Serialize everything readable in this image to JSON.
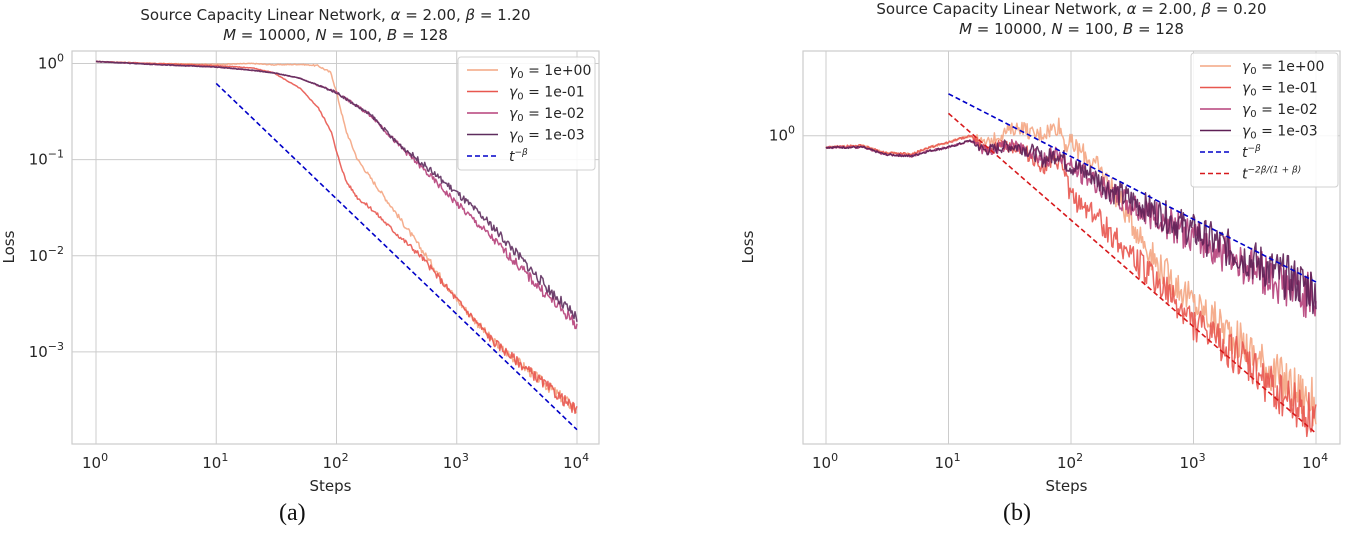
{
  "figure": {
    "panels": [
      {
        "id": "a",
        "caption": "(a)"
      },
      {
        "id": "b",
        "caption": "(b)"
      }
    ]
  },
  "chart_data": [
    {
      "type": "line",
      "title": "Source Capacity Linear Network, α = 2.00, β = 1.20",
      "subtitle": "M = 10000, N = 100, B = 128",
      "title_line1": "Source Capacity Linear Network, ",
      "params": {
        "alpha": "2.00",
        "beta": "1.20",
        "M": "10000",
        "N": "100",
        "B": "128"
      },
      "xlabel": "Steps",
      "ylabel": "Loss",
      "xscale": "log",
      "yscale": "log",
      "xlim": [
        0.6,
        15000
      ],
      "ylim": [
        0.00011,
        1.35
      ],
      "xticks": [
        {
          "v": 1,
          "base": "10",
          "exp": "0"
        },
        {
          "v": 10,
          "base": "10",
          "exp": "1"
        },
        {
          "v": 100,
          "base": "10",
          "exp": "2"
        },
        {
          "v": 1000,
          "base": "10",
          "exp": "3"
        },
        {
          "v": 10000,
          "base": "10",
          "exp": "4"
        }
      ],
      "yticks": [
        {
          "v": 1,
          "base": "10",
          "exp": "0"
        },
        {
          "v": 0.1,
          "base": "10",
          "exp": "−1"
        },
        {
          "v": 0.01,
          "base": "10",
          "exp": "−2"
        },
        {
          "v": 0.001,
          "base": "10",
          "exp": "−3"
        }
      ],
      "grid": true,
      "legend_position": "upper right",
      "series": [
        {
          "name": "γ0 = 1e+00",
          "label_sub": "0",
          "label_val": " = 1e+00",
          "color": "#f4a582",
          "style": "solid",
          "x": [
            1,
            3,
            10,
            20,
            30,
            50,
            70,
            90,
            100,
            120,
            150,
            200,
            300,
            500,
            1000,
            2000,
            5000,
            10000
          ],
          "y": [
            1.05,
            1.0,
            0.98,
            1.0,
            0.97,
            0.98,
            0.95,
            0.8,
            0.5,
            0.2,
            0.1,
            0.06,
            0.03,
            0.012,
            0.0035,
            0.0013,
            0.0005,
            0.00025
          ]
        },
        {
          "name": "γ0 = 1e-01",
          "label_sub": "0",
          "label_val": " = 1e-01",
          "color": "#e8574f",
          "style": "solid",
          "x": [
            1,
            3,
            10,
            20,
            30,
            50,
            70,
            90,
            100,
            120,
            150,
            200,
            300,
            500,
            1000,
            2000,
            5000,
            10000
          ],
          "y": [
            1.05,
            1.0,
            0.95,
            0.9,
            0.8,
            0.55,
            0.35,
            0.2,
            0.12,
            0.06,
            0.04,
            0.03,
            0.018,
            0.01,
            0.0035,
            0.0013,
            0.0005,
            0.00024
          ]
        },
        {
          "name": "γ0 = 1e-02",
          "label_sub": "0",
          "label_val": " = 1e-02",
          "color": "#b5407a",
          "style": "solid",
          "x": [
            1,
            3,
            10,
            20,
            30,
            50,
            100,
            200,
            300,
            500,
            1000,
            2000,
            5000,
            10000
          ],
          "y": [
            1.05,
            0.98,
            0.92,
            0.85,
            0.8,
            0.7,
            0.5,
            0.28,
            0.16,
            0.085,
            0.035,
            0.015,
            0.0045,
            0.0019
          ]
        },
        {
          "name": "γ0 = 1e-03",
          "label_sub": "0",
          "label_val": " = 1e-03",
          "color": "#5e2d5e",
          "style": "solid",
          "x": [
            1,
            3,
            10,
            20,
            30,
            50,
            100,
            200,
            300,
            500,
            1000,
            2000,
            5000,
            10000
          ],
          "y": [
            1.05,
            0.98,
            0.92,
            0.85,
            0.8,
            0.7,
            0.5,
            0.28,
            0.16,
            0.095,
            0.045,
            0.02,
            0.0055,
            0.0022
          ]
        },
        {
          "name": "t^{-β}",
          "label_base": "t",
          "label_sup": "−β",
          "color": "#0000c8",
          "style": "dashed",
          "x": [
            10,
            10000
          ],
          "y": [
            0.62,
            0.000155
          ]
        }
      ]
    },
    {
      "type": "line",
      "title": "Source Capacity Linear Network, α = 2.00, β = 0.20",
      "subtitle": "M = 10000, N = 100, B = 128",
      "title_line1": "Source Capacity Linear Network, ",
      "params": {
        "alpha": "2.00",
        "beta": "0.20",
        "M": "10000",
        "N": "100",
        "B": "128"
      },
      "xlabel": "Steps",
      "ylabel": "Loss",
      "xscale": "log",
      "yscale": "log",
      "xlim": [
        0.6,
        15000
      ],
      "ylim": [
        0.145,
        1.7
      ],
      "xticks": [
        {
          "v": 1,
          "base": "10",
          "exp": "0"
        },
        {
          "v": 10,
          "base": "10",
          "exp": "1"
        },
        {
          "v": 100,
          "base": "10",
          "exp": "2"
        },
        {
          "v": 1000,
          "base": "10",
          "exp": "3"
        },
        {
          "v": 10000,
          "base": "10",
          "exp": "4"
        }
      ],
      "yticks": [
        {
          "v": 1,
          "base": "10",
          "exp": "0"
        }
      ],
      "grid": true,
      "legend_position": "upper right",
      "series": [
        {
          "name": "γ0 = 1e+00",
          "label_sub": "0",
          "label_val": " = 1e+00",
          "color": "#f4a582",
          "style": "solid",
          "x": [
            1,
            2,
            3,
            5,
            7,
            10,
            15,
            20,
            30,
            40,
            50,
            60,
            80,
            90,
            100,
            150,
            200,
            300,
            500,
            1000,
            2000,
            5000,
            10000
          ],
          "y": [
            0.93,
            0.94,
            0.9,
            0.89,
            0.93,
            0.96,
            1.0,
            0.95,
            1.03,
            1.06,
            1.0,
            1.02,
            1.07,
            0.95,
            0.95,
            0.85,
            0.75,
            0.6,
            0.45,
            0.35,
            0.29,
            0.22,
            0.185
          ]
        },
        {
          "name": "γ0 = 1e-01",
          "label_sub": "0",
          "label_val": " = 1e-01",
          "color": "#e8574f",
          "style": "solid",
          "x": [
            1,
            2,
            3,
            5,
            7,
            10,
            15,
            20,
            30,
            40,
            50,
            60,
            80,
            90,
            100,
            150,
            200,
            300,
            500,
            1000,
            2000,
            5000,
            10000
          ],
          "y": [
            0.93,
            0.94,
            0.9,
            0.89,
            0.93,
            0.96,
            1.0,
            0.93,
            0.94,
            0.92,
            0.86,
            0.82,
            0.85,
            0.78,
            0.68,
            0.62,
            0.55,
            0.48,
            0.4,
            0.31,
            0.26,
            0.2,
            0.17
          ]
        },
        {
          "name": "γ0 = 1e-02",
          "label_sub": "0",
          "label_val": " = 1e-02",
          "color": "#b5407a",
          "style": "solid",
          "x": [
            1,
            2,
            3,
            5,
            7,
            10,
            15,
            20,
            30,
            40,
            50,
            60,
            80,
            90,
            100,
            150,
            200,
            300,
            500,
            1000,
            2000,
            5000,
            10000
          ],
          "y": [
            0.93,
            0.93,
            0.89,
            0.88,
            0.91,
            0.93,
            0.97,
            0.91,
            0.94,
            0.93,
            0.9,
            0.86,
            0.9,
            0.85,
            0.82,
            0.76,
            0.7,
            0.65,
            0.6,
            0.53,
            0.47,
            0.4,
            0.36
          ]
        },
        {
          "name": "γ0 = 1e-03",
          "label_sub": "0",
          "label_val": " = 1e-03",
          "color": "#5e1f55",
          "style": "solid",
          "x": [
            1,
            2,
            3,
            5,
            7,
            10,
            15,
            20,
            30,
            40,
            50,
            60,
            80,
            90,
            100,
            150,
            200,
            300,
            500,
            1000,
            2000,
            5000,
            10000
          ],
          "y": [
            0.93,
            0.93,
            0.89,
            0.88,
            0.91,
            0.93,
            0.97,
            0.91,
            0.94,
            0.93,
            0.9,
            0.86,
            0.9,
            0.85,
            0.83,
            0.78,
            0.72,
            0.67,
            0.62,
            0.55,
            0.49,
            0.42,
            0.38
          ]
        },
        {
          "name": "t^{-β}",
          "label_base": "t",
          "label_sup": "−β",
          "color": "#0000c8",
          "style": "dashed",
          "x": [
            10,
            10000
          ],
          "y": [
            1.3,
            0.4
          ]
        },
        {
          "name": "t^{-2β/(1+β)}",
          "label_base": "t",
          "label_sup": "−2β/(1 + β)",
          "color": "#d7191c",
          "style": "dashed",
          "x": [
            10,
            10000
          ],
          "y": [
            1.15,
            0.155
          ]
        }
      ]
    }
  ]
}
